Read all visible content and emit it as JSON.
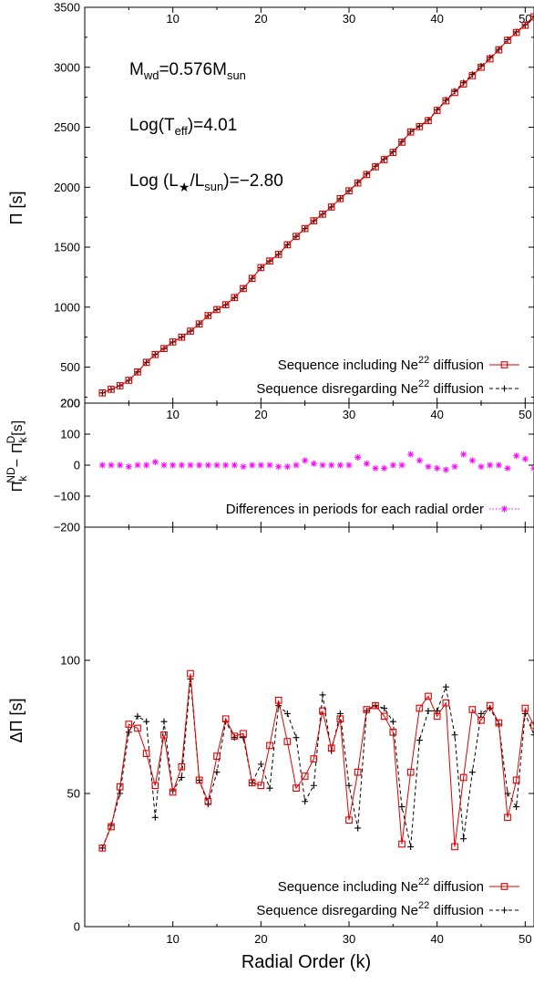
{
  "chart_data": [
    {
      "type": "line",
      "ylabel": "Π [s]",
      "ylim": [
        200,
        3500
      ],
      "xlim": [
        0,
        51
      ],
      "yticks": [
        200,
        500,
        1000,
        1500,
        2000,
        2500,
        3000,
        3500
      ],
      "xticks": [
        10,
        20,
        30,
        40,
        50
      ],
      "annotations": {
        "mass": {
          "pre": "M",
          "sub1": "wd",
          "mid": "=0.576M",
          "sub2": "sun"
        },
        "teff": {
          "pre": "Log(T",
          "sub": "eff",
          "post": ")=4.01"
        },
        "lum": {
          "pre": "Log (L",
          "sub1": "★",
          "mid": "/L",
          "sub2": "sun",
          "post": ")=−2.80"
        }
      },
      "legend": [
        {
          "pre": "Sequence including Ne",
          "sup": "22",
          "post": " diffusion",
          "color": "#dd0000",
          "style": "solid",
          "marker": "square"
        },
        {
          "pre": "Sequence disregarding Ne",
          "sup": "22",
          "post": " diffusion",
          "color": "#000000",
          "style": "dashed",
          "marker": "plus"
        }
      ],
      "legend_position": "bottom-right",
      "x": [
        2,
        3,
        4,
        5,
        6,
        7,
        8,
        9,
        10,
        11,
        12,
        13,
        14,
        15,
        16,
        17,
        18,
        19,
        20,
        21,
        22,
        23,
        24,
        25,
        26,
        27,
        28,
        29,
        30,
        31,
        32,
        33,
        34,
        35,
        36,
        37,
        38,
        39,
        40,
        41,
        42,
        43,
        44,
        45,
        46,
        47,
        48,
        49,
        50,
        51
      ],
      "series": [
        {
          "name": "Sequence including Ne22 diffusion",
          "values": [
            285,
            315,
            345,
            390,
            460,
            540,
            605,
            655,
            710,
            750,
            800,
            860,
            930,
            980,
            1020,
            1080,
            1155,
            1240,
            1330,
            1385,
            1440,
            1520,
            1590,
            1655,
            1720,
            1775,
            1835,
            1905,
            1970,
            2035,
            2105,
            2170,
            2230,
            2290,
            2375,
            2460,
            2505,
            2555,
            2640,
            2720,
            2790,
            2860,
            2930,
            3000,
            3070,
            3145,
            3225,
            3290,
            3350,
            3420
          ]
        },
        {
          "name": "Sequence disregarding Ne22 diffusion",
          "values": [
            285,
            315,
            345,
            390,
            460,
            540,
            605,
            655,
            710,
            750,
            800,
            860,
            930,
            980,
            1020,
            1080,
            1155,
            1240,
            1330,
            1385,
            1440,
            1520,
            1590,
            1655,
            1720,
            1775,
            1835,
            1905,
            1970,
            2040,
            2110,
            2175,
            2235,
            2295,
            2380,
            2465,
            2510,
            2560,
            2645,
            2725,
            2800,
            2870,
            2940,
            3010,
            3080,
            3150,
            3230,
            3295,
            3355,
            3425
          ]
        }
      ]
    },
    {
      "type": "scatter",
      "ylabel_parts": {
        "a": "Π",
        "a_sub": "k",
        "a_sup": "ND",
        "minus": "−",
        "b": "Π",
        "b_sub": "k",
        "b_sup": "D",
        "unit": "[s]"
      },
      "ylim": [
        -200,
        200
      ],
      "yticks": [
        -200,
        -100,
        0,
        100,
        200
      ],
      "yticklabels": [
        "−200",
        "−100",
        "0",
        "100",
        "200"
      ],
      "xlim": [
        0,
        51
      ],
      "xticks": [
        10,
        20,
        30,
        40,
        50
      ],
      "legend": [
        {
          "label": "Differences in periods for each radial order",
          "color": "#ff00ff",
          "style": "dotted",
          "marker": "star"
        }
      ],
      "legend_position": "bottom-right",
      "x": [
        2,
        3,
        4,
        5,
        6,
        7,
        8,
        9,
        10,
        11,
        12,
        13,
        14,
        15,
        16,
        17,
        18,
        19,
        20,
        21,
        22,
        23,
        24,
        25,
        26,
        27,
        28,
        29,
        30,
        31,
        32,
        33,
        34,
        35,
        36,
        37,
        38,
        39,
        40,
        41,
        42,
        43,
        44,
        45,
        46,
        47,
        48,
        49,
        50,
        51
      ],
      "values": [
        0,
        0,
        0,
        -5,
        0,
        0,
        10,
        0,
        0,
        0,
        0,
        0,
        0,
        0,
        0,
        0,
        -5,
        0,
        0,
        0,
        -5,
        -5,
        0,
        15,
        5,
        0,
        0,
        0,
        0,
        25,
        5,
        -10,
        -10,
        0,
        0,
        35,
        15,
        -5,
        -10,
        -15,
        -5,
        35,
        15,
        -5,
        0,
        0,
        -10,
        30,
        20,
        -10
      ]
    },
    {
      "type": "line",
      "ylabel": "ΔΠ [s]",
      "xlabel": "Radial Order (k)",
      "ylim": [
        0,
        150
      ],
      "yticks": [
        0,
        50,
        100
      ],
      "xlim": [
        0,
        51
      ],
      "xticks": [
        10,
        20,
        30,
        40,
        50
      ],
      "legend": [
        {
          "pre": "Sequence including Ne",
          "sup": "22",
          "post": " diffusion",
          "color": "#dd0000",
          "style": "solid",
          "marker": "square"
        },
        {
          "pre": "Sequence disregarding Ne",
          "sup": "22",
          "post": " diffusion",
          "color": "#000000",
          "style": "dashed",
          "marker": "plus"
        }
      ],
      "legend_position": "bottom-right",
      "x": [
        2,
        3,
        4,
        5,
        6,
        7,
        8,
        9,
        10,
        11,
        12,
        13,
        14,
        15,
        16,
        17,
        18,
        19,
        20,
        21,
        22,
        23,
        24,
        25,
        26,
        27,
        28,
        29,
        30,
        31,
        32,
        33,
        34,
        35,
        36,
        37,
        38,
        39,
        40,
        41,
        42,
        43,
        44,
        45,
        46,
        47,
        48,
        49,
        50,
        51
      ],
      "series": [
        {
          "name": "Sequence including Ne22 diffusion",
          "values": [
            29.5,
            37.5,
            52.5,
            76,
            74.5,
            65,
            53,
            72,
            50.5,
            60,
            95,
            55,
            47,
            64,
            78,
            71.5,
            72.5,
            54,
            53,
            68,
            85,
            69.5,
            52,
            56.5,
            63,
            81,
            67,
            78,
            40,
            58,
            81.5,
            83,
            79,
            73,
            31,
            58,
            82,
            86.5,
            79,
            84,
            30,
            56,
            81.5,
            77.5,
            83,
            76.5,
            41,
            55,
            82,
            75.5
          ]
        },
        {
          "name": "Sequence disregarding Ne22 diffusion",
          "values": [
            29.5,
            38,
            50,
            73,
            79,
            77,
            41,
            77,
            51,
            56,
            93,
            55,
            46,
            58,
            77,
            71,
            71,
            54,
            61,
            52,
            83,
            80,
            71,
            47,
            53,
            87,
            66,
            80,
            53,
            37,
            81,
            83,
            82,
            77,
            45,
            30,
            70,
            81,
            81,
            90,
            72,
            33,
            58,
            80,
            82,
            76,
            50,
            45,
            80,
            72
          ]
        }
      ]
    }
  ]
}
